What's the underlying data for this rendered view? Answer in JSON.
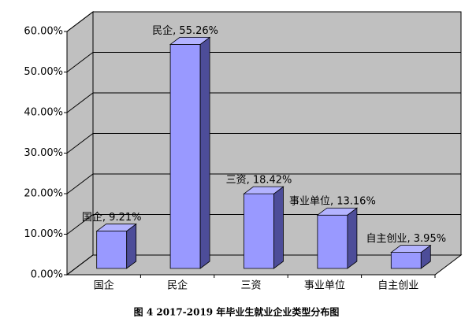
{
  "chart_data": {
    "type": "bar3d",
    "caption": "图 4 2017-2019 年毕业生就业企业类型分布图",
    "categories": [
      "国企",
      "民企",
      "三资",
      "事业单位",
      "自主创业"
    ],
    "values": [
      9.21,
      55.26,
      18.42,
      13.16,
      3.95
    ],
    "value_labels": [
      "国企, 9.21%",
      "民企, 55.26%",
      "三资, 18.42%",
      "事业单位, 13.16%",
      "自主创业, 3.95%"
    ],
    "color": "#9999ff",
    "ylim": [
      0,
      60
    ],
    "yticks": [
      {
        "value": 0,
        "label": "0.00%"
      },
      {
        "value": 10,
        "label": "10.00%"
      },
      {
        "value": 20,
        "label": "20.00%"
      },
      {
        "value": 30,
        "label": "30.00%"
      },
      {
        "value": 40,
        "label": "40.00%"
      },
      {
        "value": 50,
        "label": "50.00%"
      },
      {
        "value": 60,
        "label": "60.00%"
      }
    ],
    "grid": true
  }
}
